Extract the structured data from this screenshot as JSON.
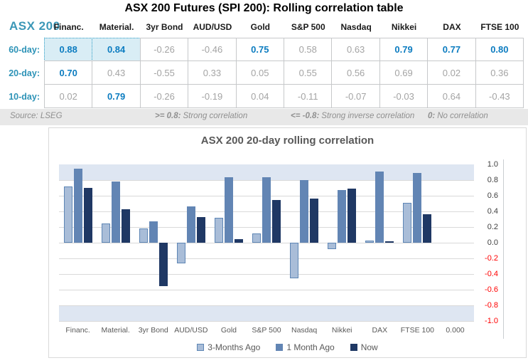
{
  "page": {
    "title": "ASX 200 Futures (SPI 200): Rolling correlation table"
  },
  "table": {
    "corner_label": "ASX 200",
    "columns": [
      "Financ.",
      "Material.",
      "3yr Bond",
      "AUD/USD",
      "Gold",
      "S&P 500",
      "Nasdaq",
      "Nikkei",
      "DAX",
      "FTSE 100"
    ],
    "rows": [
      {
        "label": "60-day:",
        "values": [
          "0.88",
          "0.84",
          "-0.26",
          "-0.46",
          "0.75",
          "0.58",
          "0.63",
          "0.79",
          "0.77",
          "0.80"
        ],
        "highlighted_columns": [
          0,
          1
        ]
      },
      {
        "label": "20-day:",
        "values": [
          "0.70",
          "0.43",
          "-0.55",
          "0.33",
          "0.05",
          "0.55",
          "0.56",
          "0.69",
          "0.02",
          "0.36"
        ],
        "highlighted_columns": []
      },
      {
        "label": "10-day:",
        "values": [
          "0.02",
          "0.79",
          "-0.26",
          "-0.19",
          "0.04",
          "-0.11",
          "-0.07",
          "-0.03",
          "0.64",
          "-0.43"
        ],
        "highlighted_columns": []
      }
    ],
    "strong_threshold": 0.7,
    "colors": {
      "strong_value": "#0C7CC0",
      "normal_value": "#A4A4A4",
      "corner_label": "#3B97B7",
      "row_label": "#2D93B7",
      "highlight_bg": "#D9EDF5",
      "highlight_border": "#2E9EC6",
      "grid_border": "#C6C8CA"
    }
  },
  "footnote": {
    "source": "Source: LSEG",
    "items": [
      {
        "key": ">= 0.8:",
        "text": "Strong correlation"
      },
      {
        "key": "<= -0.8:",
        "text": "Strong inverse correlation"
      },
      {
        "key": "0:",
        "text": "No correlation"
      }
    ]
  },
  "chart_data": {
    "type": "bar",
    "title": "ASX 200 20-day rolling correlation",
    "categories": [
      "Financ.",
      "Material.",
      "3yr Bond",
      "AUD/USD",
      "Gold",
      "S&P 500",
      "Nasdaq",
      "Nikkei",
      "DAX",
      "FTSE 100",
      "0.000"
    ],
    "series": [
      {
        "name": "3-Months Ago",
        "fill": "#A9BDD8",
        "border": "#5E86B5",
        "values": [
          0.72,
          0.25,
          0.18,
          -0.26,
          0.32,
          0.12,
          -0.45,
          -0.08,
          0.03,
          0.51,
          0
        ]
      },
      {
        "name": "1 Month Ago",
        "fill": "#6285B4",
        "border": "#6285B4",
        "values": [
          0.95,
          0.78,
          0.27,
          0.46,
          0.84,
          0.84,
          0.8,
          0.67,
          0.91,
          0.89,
          0
        ]
      },
      {
        "name": "Now",
        "fill": "#1F3864",
        "border": "#1F3864",
        "values": [
          0.7,
          0.43,
          -0.55,
          0.33,
          0.05,
          0.55,
          0.56,
          0.69,
          0.02,
          0.36,
          0
        ]
      }
    ],
    "ylim": [
      -1.0,
      1.0
    ],
    "ytick_step": 0.2,
    "yticks": [
      "1.0",
      "0.8",
      "0.6",
      "0.4",
      "0.2",
      "0.0",
      "-0.2",
      "-0.4",
      "-0.6",
      "-0.8",
      "-1.0"
    ],
    "band_ranges": [
      [
        0.8,
        1.0
      ],
      [
        -1.0,
        -0.8
      ]
    ],
    "band_color": "#DEE6F2",
    "gridline_color": "#D9D9D9",
    "positive_tick_color": "#404040",
    "negative_tick_color": "#FF0000",
    "legend_position": "bottom",
    "grid": true
  }
}
